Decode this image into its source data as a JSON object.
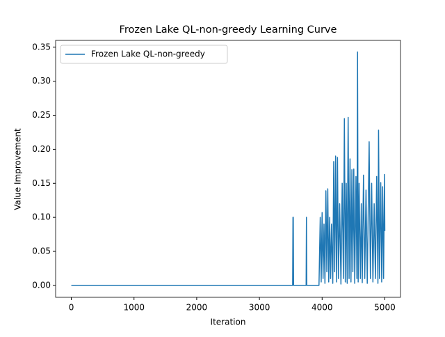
{
  "chart_data": {
    "type": "line",
    "title": "Frozen Lake QL-non-greedy Learning Curve",
    "xlabel": "Iteration",
    "ylabel": "Value Improvement",
    "x": [
      0,
      3530,
      3535,
      3540,
      3545,
      3745,
      3750,
      3755,
      3950,
      3970,
      3985,
      4000,
      4015,
      4030,
      4045,
      4060,
      4075,
      4090,
      4105,
      4120,
      4135,
      4150,
      4170,
      4185,
      4200,
      4215,
      4230,
      4245,
      4260,
      4280,
      4300,
      4320,
      4340,
      4355,
      4370,
      4385,
      4400,
      4415,
      4430,
      4445,
      4460,
      4475,
      4490,
      4505,
      4520,
      4540,
      4555,
      4565,
      4575,
      4590,
      4610,
      4625,
      4640,
      4660,
      4680,
      4700,
      4720,
      4750,
      4770,
      4790,
      4810,
      4830,
      4850,
      4870,
      4890,
      4900,
      4915,
      4935,
      4950,
      4965,
      4980,
      4995,
      5000
    ],
    "series": [
      {
        "name": "Frozen Lake QL-non-greedy",
        "color": "#1f77b4",
        "values": [
          0,
          0,
          0.1,
          0.1,
          0,
          0,
          0.1,
          0,
          0,
          0.1,
          0.005,
          0.107,
          0.01,
          0.09,
          0.003,
          0.139,
          0.02,
          0.142,
          0.005,
          0.1,
          0.01,
          0.09,
          0.003,
          0.182,
          0.02,
          0.19,
          0.005,
          0.188,
          0.01,
          0.12,
          0.002,
          0.15,
          0.01,
          0.245,
          0.005,
          0.15,
          0.003,
          0.247,
          0.01,
          0.186,
          0.005,
          0.17,
          0.02,
          0.171,
          0.003,
          0.16,
          0.01,
          0.343,
          0.005,
          0.15,
          0.01,
          0.12,
          0.004,
          0.162,
          0.01,
          0.14,
          0.003,
          0.211,
          0.01,
          0.15,
          0.005,
          0.12,
          0.01,
          0.16,
          0.003,
          0.228,
          0.01,
          0.151,
          0.005,
          0.145,
          0.01,
          0.163,
          0.08
        ]
      }
    ],
    "xlim": [
      -250,
      5250
    ],
    "ylim": [
      -0.0175,
      0.36
    ],
    "xticks": [
      0,
      1000,
      2000,
      3000,
      4000,
      5000
    ],
    "yticks": [
      {
        "value": 0,
        "label": "0.00"
      },
      {
        "value": 0.05,
        "label": "0.05"
      },
      {
        "value": 0.1,
        "label": "0.10"
      },
      {
        "value": 0.15,
        "label": "0.15"
      },
      {
        "value": 0.2,
        "label": "0.20"
      },
      {
        "value": 0.25,
        "label": "0.25"
      },
      {
        "value": 0.3,
        "label": "0.30"
      },
      {
        "value": 0.35,
        "label": "0.35"
      }
    ],
    "legend": "upper left"
  }
}
